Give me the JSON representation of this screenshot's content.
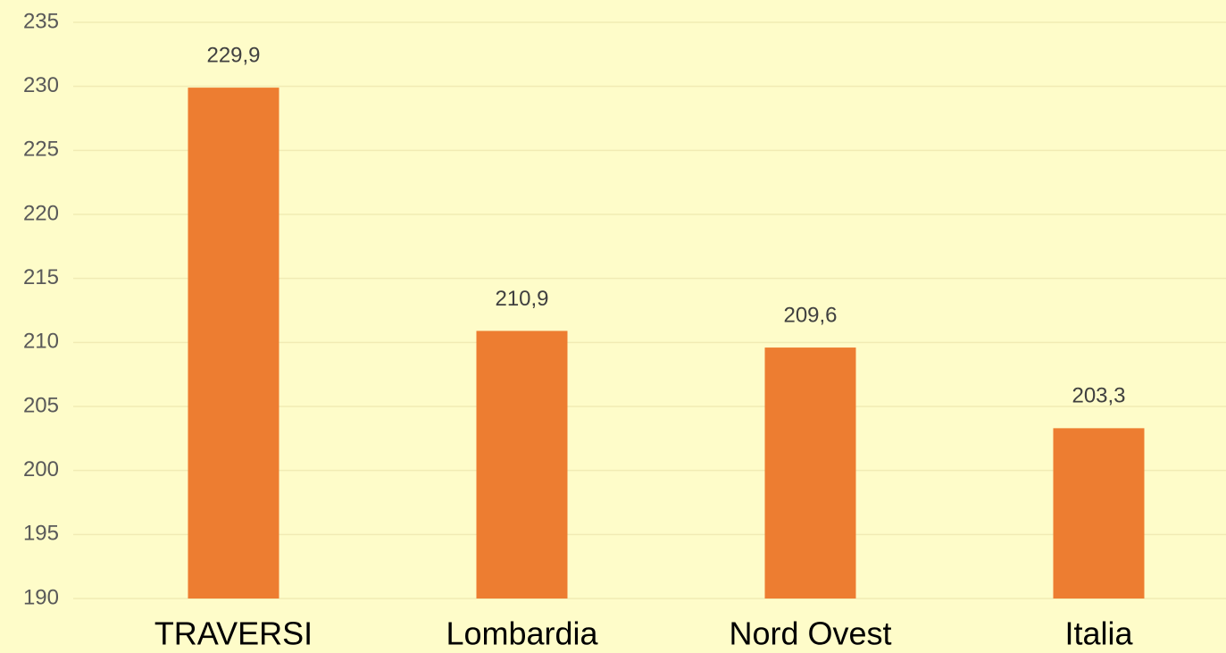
{
  "chart_data": {
    "type": "bar",
    "categories": [
      "TRAVERSI",
      "Lombardia",
      "Nord Ovest",
      "Italia"
    ],
    "values": [
      229.9,
      210.9,
      209.6,
      203.3
    ],
    "value_labels": [
      "229,9",
      "210,9",
      "209,6",
      "203,3"
    ],
    "color": "#ed7d31",
    "ylim": [
      190,
      235
    ],
    "yticks": [
      190,
      195,
      200,
      205,
      210,
      215,
      220,
      225,
      230,
      235
    ],
    "grid": true
  }
}
